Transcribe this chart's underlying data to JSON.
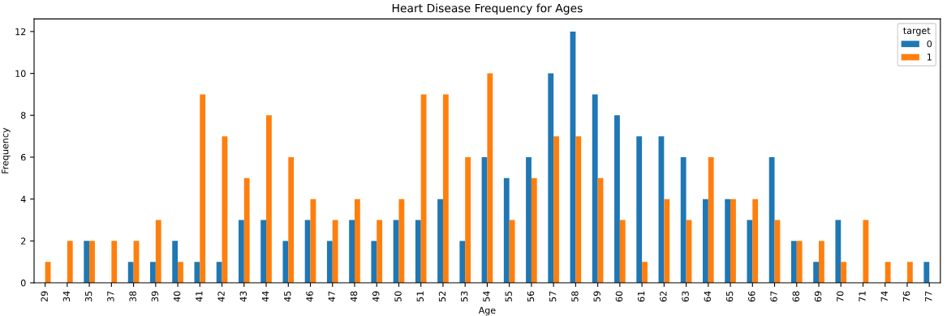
{
  "chart_data": {
    "type": "bar",
    "title": "Heart Disease Frequency for Ages",
    "xlabel": "Age",
    "ylabel": "Frequency",
    "legend_title": "target",
    "legend": "top right",
    "grid": false,
    "categories": [
      "29",
      "34",
      "35",
      "37",
      "38",
      "39",
      "40",
      "41",
      "42",
      "43",
      "44",
      "45",
      "46",
      "47",
      "48",
      "49",
      "50",
      "51",
      "52",
      "53",
      "54",
      "55",
      "56",
      "57",
      "58",
      "59",
      "60",
      "61",
      "62",
      "63",
      "64",
      "65",
      "66",
      "67",
      "68",
      "69",
      "70",
      "71",
      "74",
      "76",
      "77"
    ],
    "ylim": [
      0,
      12.6
    ],
    "yticks": [
      0,
      2,
      4,
      6,
      8,
      10,
      12
    ],
    "series": [
      {
        "name": "0",
        "color": "#1f77b4",
        "values": [
          0,
          0,
          2,
          0,
          1,
          1,
          2,
          1,
          1,
          3,
          3,
          2,
          3,
          2,
          3,
          2,
          3,
          3,
          4,
          2,
          6,
          5,
          6,
          10,
          12,
          9,
          8,
          7,
          7,
          6,
          4,
          4,
          3,
          6,
          2,
          1,
          3,
          0,
          0,
          0,
          1
        ]
      },
      {
        "name": "1",
        "color": "#ff7f0e",
        "values": [
          1,
          2,
          2,
          2,
          2,
          3,
          1,
          9,
          7,
          5,
          8,
          6,
          4,
          3,
          4,
          3,
          4,
          9,
          9,
          6,
          10,
          3,
          5,
          7,
          7,
          5,
          3,
          1,
          4,
          3,
          6,
          4,
          4,
          3,
          2,
          2,
          1,
          3,
          1,
          1,
          0
        ]
      }
    ]
  }
}
